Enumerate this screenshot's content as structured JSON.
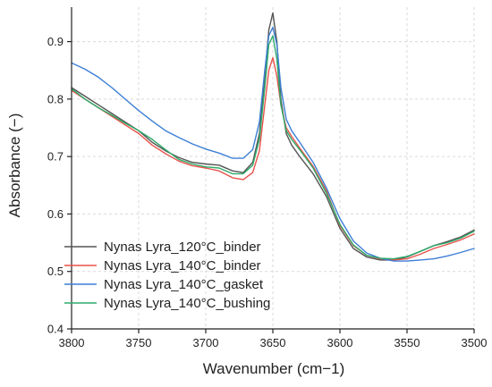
{
  "chart_data": {
    "type": "line",
    "title": "",
    "xlabel": "Wavenumber (cm−1)",
    "ylabel": "Absorbance (−)",
    "xlim": [
      3800,
      3500
    ],
    "ylim": [
      0.4,
      0.96
    ],
    "x_reversed": true,
    "xticks": [
      3800,
      3750,
      3700,
      3650,
      3600,
      3550,
      3500
    ],
    "xtick_labels": [
      "3800",
      "3750",
      "3700",
      "3650",
      "3600",
      "3550",
      "3500"
    ],
    "yticks": [
      0.4,
      0.5,
      0.6,
      0.7,
      0.8,
      0.9
    ],
    "ytick_labels": [
      "0.4",
      "0.5",
      "0.6",
      "0.7",
      "0.8",
      "0.9"
    ],
    "grid": true,
    "legend_position": "bottom-left",
    "series": [
      {
        "name": "Nynas Lyra_120°C_binder",
        "color": "#555555",
        "x": [
          3800,
          3790,
          3780,
          3770,
          3760,
          3750,
          3740,
          3730,
          3720,
          3710,
          3700,
          3690,
          3680,
          3672,
          3665,
          3660,
          3656,
          3653,
          3650,
          3647,
          3644,
          3640,
          3636,
          3630,
          3620,
          3610,
          3600,
          3590,
          3580,
          3570,
          3560,
          3550,
          3540,
          3530,
          3520,
          3510,
          3500
        ],
        "y": [
          0.82,
          0.805,
          0.79,
          0.775,
          0.76,
          0.745,
          0.725,
          0.71,
          0.698,
          0.69,
          0.687,
          0.685,
          0.675,
          0.672,
          0.69,
          0.74,
          0.84,
          0.92,
          0.95,
          0.9,
          0.8,
          0.74,
          0.72,
          0.7,
          0.67,
          0.63,
          0.575,
          0.54,
          0.525,
          0.52,
          0.52,
          0.525,
          0.535,
          0.545,
          0.552,
          0.56,
          0.572
        ]
      },
      {
        "name": "Nynas Lyra_140°C_binder",
        "color": "#e8524a",
        "x": [
          3800,
          3790,
          3780,
          3770,
          3760,
          3750,
          3740,
          3730,
          3720,
          3710,
          3700,
          3690,
          3680,
          3672,
          3665,
          3660,
          3656,
          3653,
          3650,
          3647,
          3644,
          3640,
          3636,
          3630,
          3620,
          3610,
          3600,
          3590,
          3580,
          3570,
          3560,
          3550,
          3540,
          3530,
          3520,
          3510,
          3500
        ],
        "y": [
          0.815,
          0.8,
          0.785,
          0.77,
          0.755,
          0.74,
          0.72,
          0.705,
          0.692,
          0.684,
          0.68,
          0.675,
          0.663,
          0.66,
          0.672,
          0.71,
          0.79,
          0.85,
          0.872,
          0.84,
          0.79,
          0.75,
          0.735,
          0.715,
          0.683,
          0.64,
          0.58,
          0.545,
          0.528,
          0.522,
          0.52,
          0.522,
          0.53,
          0.54,
          0.547,
          0.555,
          0.565
        ]
      },
      {
        "name": "Nynas Lyra_140°C_gasket",
        "color": "#3c7fd6",
        "x": [
          3800,
          3790,
          3780,
          3770,
          3760,
          3750,
          3740,
          3730,
          3720,
          3710,
          3700,
          3690,
          3680,
          3672,
          3665,
          3660,
          3656,
          3653,
          3650,
          3647,
          3644,
          3640,
          3636,
          3630,
          3620,
          3610,
          3600,
          3590,
          3580,
          3570,
          3560,
          3550,
          3540,
          3530,
          3520,
          3510,
          3500
        ],
        "y": [
          0.863,
          0.852,
          0.838,
          0.82,
          0.8,
          0.78,
          0.762,
          0.745,
          0.733,
          0.722,
          0.713,
          0.706,
          0.697,
          0.697,
          0.712,
          0.76,
          0.85,
          0.91,
          0.925,
          0.895,
          0.82,
          0.765,
          0.745,
          0.725,
          0.69,
          0.645,
          0.592,
          0.553,
          0.532,
          0.523,
          0.518,
          0.518,
          0.52,
          0.522,
          0.527,
          0.533,
          0.54
        ]
      },
      {
        "name": "Nynas Lyra_140°C_bushing",
        "color": "#2faa6a",
        "x": [
          3800,
          3790,
          3780,
          3770,
          3760,
          3750,
          3740,
          3730,
          3720,
          3710,
          3700,
          3690,
          3680,
          3672,
          3665,
          3660,
          3656,
          3653,
          3650,
          3647,
          3644,
          3640,
          3636,
          3630,
          3620,
          3610,
          3600,
          3590,
          3580,
          3570,
          3560,
          3550,
          3540,
          3530,
          3520,
          3510,
          3500
        ],
        "y": [
          0.818,
          0.8,
          0.785,
          0.772,
          0.758,
          0.745,
          0.73,
          0.712,
          0.695,
          0.687,
          0.682,
          0.68,
          0.67,
          0.67,
          0.685,
          0.73,
          0.82,
          0.895,
          0.91,
          0.87,
          0.79,
          0.745,
          0.73,
          0.712,
          0.68,
          0.636,
          0.582,
          0.546,
          0.528,
          0.523,
          0.522,
          0.526,
          0.535,
          0.545,
          0.55,
          0.558,
          0.57
        ]
      }
    ]
  }
}
